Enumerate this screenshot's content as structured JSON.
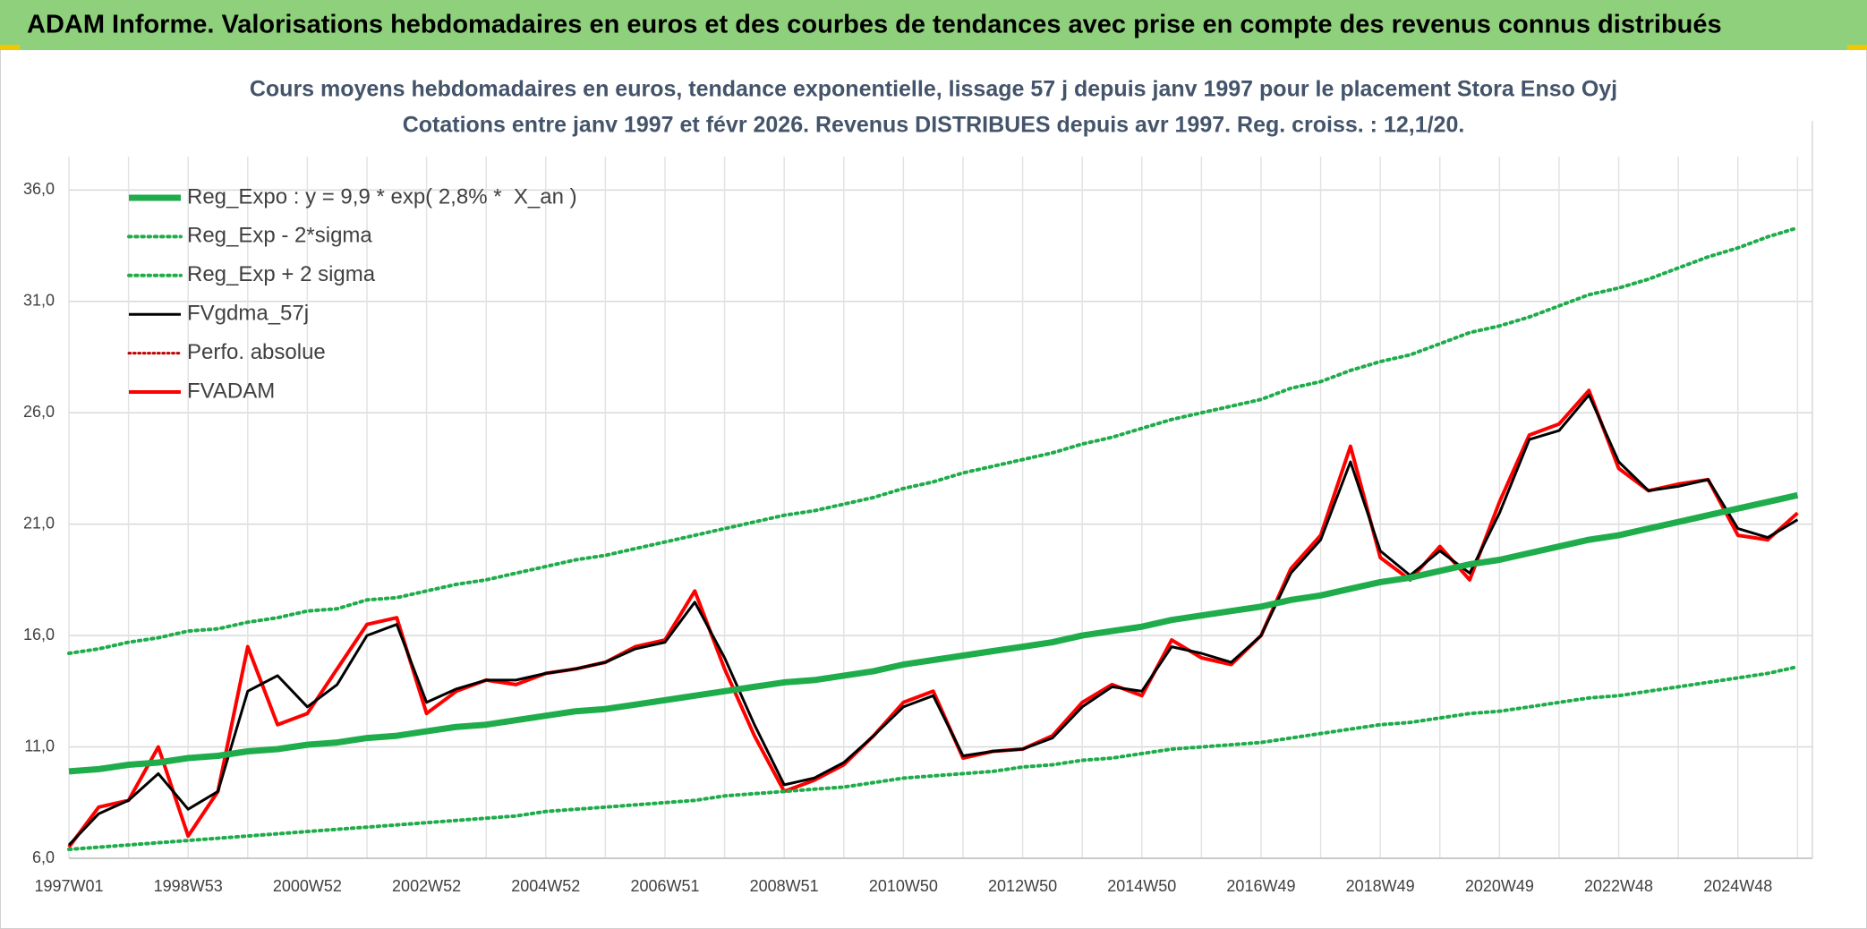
{
  "header": {
    "title": "ADAM Informe. Valorisations hebdomadaires en euros et des courbes de tendances avec prise en compte des revenus connus distribués"
  },
  "chart_data": {
    "type": "line",
    "title": "Cours moyens hebdomadaires en euros, tendance exponentielle, lissage 57 j depuis janv 1997 pour le placement Stora Enso Oyj",
    "subtitle": "Cotations entre janv 1997 et févr 2026. Revenus DISTRIBUES depuis avr 1997. Reg. croiss. : 12,1/20.",
    "categories": [
      "1997W01",
      null,
      null,
      null,
      "1998W53",
      null,
      null,
      null,
      "2000W52",
      null,
      null,
      null,
      "2002W52",
      null,
      null,
      null,
      "2004W52",
      null,
      null,
      null,
      "2006W51",
      null,
      null,
      null,
      "2008W51",
      null,
      null,
      null,
      "2010W50",
      null,
      null,
      null,
      "2012W50",
      null,
      null,
      null,
      "2014W50",
      null,
      null,
      null,
      "2016W49",
      null,
      null,
      null,
      "2018W49",
      null,
      null,
      null,
      "2020W49",
      null,
      null,
      null,
      "2022W48",
      null,
      null,
      null,
      "2024W48",
      null,
      null
    ],
    "ylim": [
      6,
      37.5
    ],
    "yticks": [
      {
        "value": 6,
        "label": "6,0"
      },
      {
        "value": 11,
        "label": "11,0"
      },
      {
        "value": 16,
        "label": "16,0"
      },
      {
        "value": 21,
        "label": "21,0"
      },
      {
        "value": 26,
        "label": "26,0"
      },
      {
        "value": 31,
        "label": "31,0"
      },
      {
        "value": 36,
        "label": "36,0"
      }
    ],
    "grid": true,
    "legend": "top-left",
    "series": [
      {
        "name": "Reg_Expo : y = 9,9 * exp( 2,8% *  X_an )",
        "color": "#1fac4b",
        "style": "solid",
        "width": 7,
        "values": [
          9.9,
          10.0,
          10.2,
          10.3,
          10.5,
          10.6,
          10.8,
          10.9,
          11.1,
          11.2,
          11.4,
          11.5,
          11.7,
          11.9,
          12.0,
          12.2,
          12.4,
          12.6,
          12.7,
          12.9,
          13.1,
          13.3,
          13.5,
          13.7,
          13.9,
          14.0,
          14.2,
          14.4,
          14.7,
          14.9,
          15.1,
          15.3,
          15.5,
          15.7,
          16.0,
          16.2,
          16.4,
          16.7,
          16.9,
          17.1,
          17.3,
          17.6,
          17.8,
          18.1,
          18.4,
          18.6,
          18.9,
          19.2,
          19.4,
          19.7,
          20.0,
          20.3,
          20.5,
          20.8,
          21.1,
          21.4,
          21.7,
          22.0,
          22.3
        ]
      },
      {
        "name": "Reg_Exp - 2*sigma",
        "color": "#1fac4b",
        "style": "dotted",
        "width": 4,
        "values": [
          6.4,
          6.5,
          6.6,
          6.7,
          6.8,
          6.9,
          7.0,
          7.1,
          7.2,
          7.3,
          7.4,
          7.5,
          7.6,
          7.7,
          7.8,
          7.9,
          8.1,
          8.2,
          8.3,
          8.4,
          8.5,
          8.6,
          8.8,
          8.9,
          9.0,
          9.1,
          9.2,
          9.4,
          9.6,
          9.7,
          9.8,
          9.9,
          10.1,
          10.2,
          10.4,
          10.5,
          10.7,
          10.9,
          11.0,
          11.1,
          11.2,
          11.4,
          11.6,
          11.8,
          12.0,
          12.1,
          12.3,
          12.5,
          12.6,
          12.8,
          13.0,
          13.2,
          13.3,
          13.5,
          13.7,
          13.9,
          14.1,
          14.3,
          14.6
        ]
      },
      {
        "name": "Reg_Exp + 2 sigma",
        "color": "#1fac4b",
        "style": "dotted",
        "width": 4,
        "values": [
          15.2,
          15.4,
          15.7,
          15.9,
          16.2,
          16.3,
          16.6,
          16.8,
          17.1,
          17.2,
          17.6,
          17.7,
          18.0,
          18.3,
          18.5,
          18.8,
          19.1,
          19.4,
          19.6,
          19.9,
          20.2,
          20.5,
          20.8,
          21.1,
          21.4,
          21.6,
          21.9,
          22.2,
          22.6,
          22.9,
          23.3,
          23.6,
          23.9,
          24.2,
          24.6,
          24.9,
          25.3,
          25.7,
          26.0,
          26.3,
          26.6,
          27.1,
          27.4,
          27.9,
          28.3,
          28.6,
          29.1,
          29.6,
          29.9,
          30.3,
          30.8,
          31.3,
          31.6,
          32.0,
          32.5,
          33.0,
          33.4,
          33.9,
          34.3
        ]
      },
      {
        "name": "FVgdma_57j",
        "color": "#000000",
        "style": "solid",
        "width": 3,
        "values": [
          6.6,
          8.0,
          8.6,
          9.8,
          8.2,
          9.0,
          13.5,
          14.2,
          12.8,
          13.8,
          16.0,
          16.5,
          13.0,
          13.6,
          14.0,
          14.0,
          14.3,
          14.5,
          14.8,
          15.4,
          15.7,
          17.5,
          15.0,
          12.0,
          9.3,
          9.6,
          10.3,
          11.5,
          12.8,
          13.3,
          10.6,
          10.8,
          10.9,
          11.4,
          12.8,
          13.7,
          13.5,
          15.5,
          15.2,
          14.8,
          16.0,
          18.8,
          20.3,
          23.8,
          19.8,
          18.7,
          19.8,
          18.8,
          21.5,
          24.8,
          25.2,
          26.8,
          23.8,
          22.5,
          22.7,
          23.0,
          20.8,
          20.4,
          21.2
        ]
      },
      {
        "name": "Perfo. absolue",
        "color": "#c00000",
        "style": "dotted",
        "width": 3,
        "values": [
          null,
          null,
          null,
          null,
          null,
          null,
          null,
          null,
          null,
          null,
          null,
          null,
          null,
          null,
          null,
          null,
          null,
          null,
          null,
          null,
          null,
          null,
          null,
          null,
          null,
          null,
          null,
          null,
          null,
          null,
          null,
          null,
          null,
          null,
          null,
          null,
          null,
          null,
          null,
          null,
          null,
          null,
          null,
          null,
          null,
          null,
          null,
          null,
          null,
          null,
          null,
          null,
          null,
          null,
          null,
          null,
          null,
          null,
          null
        ]
      },
      {
        "name": "FVADAM",
        "color": "#ff0000",
        "style": "solid",
        "width": 4,
        "values": [
          6.5,
          8.3,
          8.6,
          11.0,
          7.0,
          9.0,
          15.5,
          12.0,
          12.5,
          14.5,
          16.5,
          16.8,
          12.5,
          13.5,
          14.0,
          13.8,
          14.3,
          14.5,
          14.8,
          15.5,
          15.8,
          18.0,
          14.5,
          11.5,
          9.0,
          9.5,
          10.2,
          11.5,
          13.0,
          13.5,
          10.5,
          10.8,
          10.9,
          11.5,
          13.0,
          13.8,
          13.3,
          15.8,
          15.0,
          14.7,
          16.0,
          19.0,
          20.5,
          24.5,
          19.5,
          18.5,
          20.0,
          18.5,
          22.0,
          25.0,
          25.5,
          27.0,
          23.5,
          22.5,
          22.8,
          23.0,
          20.5,
          20.3,
          21.5
        ]
      }
    ]
  }
}
